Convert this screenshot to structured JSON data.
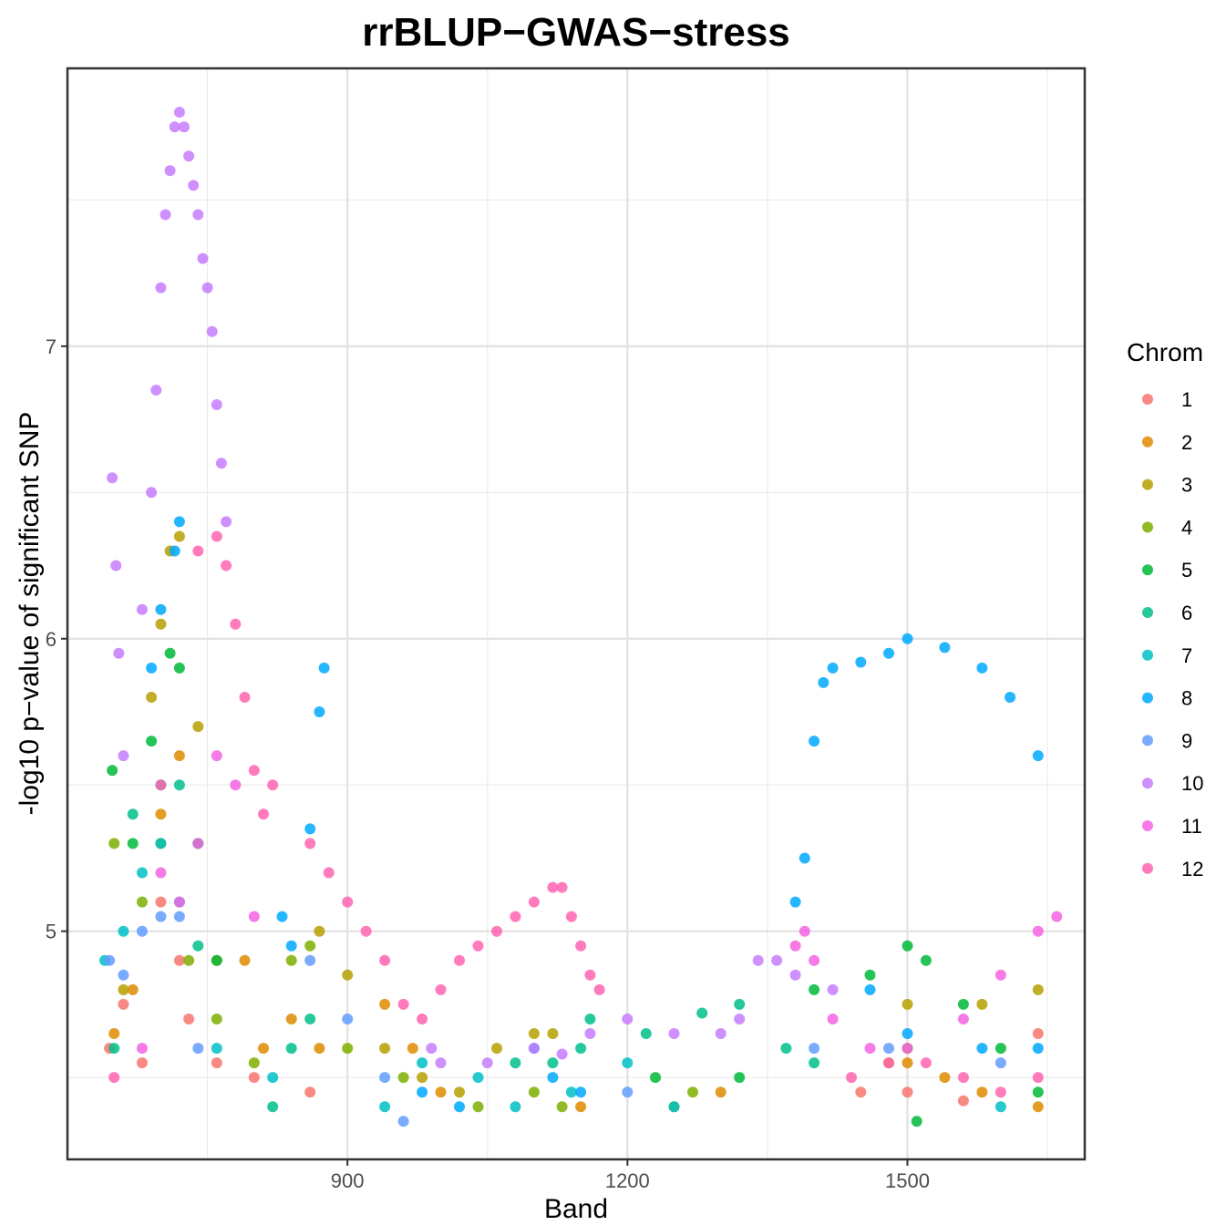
{
  "chart_data": {
    "type": "scatter",
    "title": "rrBLUP−GWAS−stress",
    "xlabel": "Band",
    "ylabel": "-log10 p−value of significant SNP",
    "xlim": [
      600,
      1690
    ],
    "ylim": [
      4.22,
      7.95
    ],
    "x_ticks": [
      900,
      1200,
      1500
    ],
    "x_tick_labels": [
      "900",
      "1200",
      "1500"
    ],
    "y_ticks": [
      5,
      6,
      7
    ],
    "y_tick_labels": [
      "5",
      "6",
      "7"
    ],
    "grid": true,
    "legend": {
      "title": "Chrom",
      "position": "right"
    },
    "series": [
      {
        "name": "1",
        "color": "#F8766D",
        "points": [
          [
            645,
            4.6
          ],
          [
            660,
            4.75
          ],
          [
            680,
            4.55
          ],
          [
            700,
            5.1
          ],
          [
            720,
            4.9
          ],
          [
            730,
            4.7
          ],
          [
            760,
            4.55
          ],
          [
            800,
            4.5
          ],
          [
            860,
            4.45
          ],
          [
            1450,
            4.45
          ],
          [
            1500,
            4.45
          ],
          [
            1560,
            4.42
          ],
          [
            1640,
            4.65
          ]
        ]
      },
      {
        "name": "2",
        "color": "#DE8C00",
        "points": [
          [
            650,
            4.65
          ],
          [
            670,
            4.8
          ],
          [
            700,
            5.4
          ],
          [
            720,
            5.6
          ],
          [
            760,
            4.9
          ],
          [
            790,
            4.9
          ],
          [
            810,
            4.6
          ],
          [
            840,
            4.7
          ],
          [
            870,
            4.6
          ],
          [
            940,
            4.75
          ],
          [
            970,
            4.6
          ],
          [
            1000,
            4.45
          ],
          [
            1150,
            4.4
          ],
          [
            1300,
            4.45
          ],
          [
            1480,
            4.55
          ],
          [
            1500,
            4.55
          ],
          [
            1540,
            4.5
          ],
          [
            1580,
            4.45
          ],
          [
            1640,
            4.4
          ]
        ]
      },
      {
        "name": "3",
        "color": "#B79F00",
        "points": [
          [
            660,
            4.8
          ],
          [
            690,
            5.8
          ],
          [
            700,
            6.05
          ],
          [
            710,
            6.3
          ],
          [
            720,
            6.35
          ],
          [
            740,
            5.7
          ],
          [
            870,
            5.0
          ],
          [
            900,
            4.85
          ],
          [
            940,
            4.6
          ],
          [
            980,
            4.5
          ],
          [
            1020,
            4.45
          ],
          [
            1060,
            4.6
          ],
          [
            1100,
            4.65
          ],
          [
            1120,
            4.65
          ],
          [
            1500,
            4.75
          ],
          [
            1580,
            4.75
          ],
          [
            1640,
            4.8
          ]
        ]
      },
      {
        "name": "4",
        "color": "#7CAE00",
        "points": [
          [
            650,
            5.3
          ],
          [
            680,
            5.1
          ],
          [
            700,
            5.3
          ],
          [
            730,
            4.9
          ],
          [
            760,
            4.7
          ],
          [
            800,
            4.55
          ],
          [
            840,
            4.9
          ],
          [
            860,
            4.95
          ],
          [
            900,
            4.6
          ],
          [
            960,
            4.5
          ],
          [
            1040,
            4.4
          ],
          [
            1100,
            4.45
          ],
          [
            1130,
            4.4
          ],
          [
            1250,
            4.4
          ],
          [
            1270,
            4.45
          ],
          [
            1500,
            4.6
          ]
        ]
      },
      {
        "name": "5",
        "color": "#00BA38",
        "points": [
          [
            648,
            5.55
          ],
          [
            670,
            5.3
          ],
          [
            690,
            5.65
          ],
          [
            710,
            5.95
          ],
          [
            720,
            5.9
          ],
          [
            740,
            5.3
          ],
          [
            760,
            4.9
          ],
          [
            1230,
            4.5
          ],
          [
            1320,
            4.5
          ],
          [
            1400,
            4.8
          ],
          [
            1460,
            4.85
          ],
          [
            1500,
            4.95
          ],
          [
            1520,
            4.9
          ],
          [
            1560,
            4.75
          ],
          [
            1600,
            4.6
          ],
          [
            1640,
            4.45
          ],
          [
            1510,
            4.35
          ]
        ]
      },
      {
        "name": "6",
        "color": "#00C08B",
        "points": [
          [
            650,
            4.6
          ],
          [
            670,
            5.4
          ],
          [
            700,
            5.5
          ],
          [
            720,
            5.5
          ],
          [
            740,
            4.95
          ],
          [
            820,
            4.4
          ],
          [
            840,
            4.6
          ],
          [
            860,
            4.7
          ],
          [
            1080,
            4.55
          ],
          [
            1120,
            4.55
          ],
          [
            1150,
            4.6
          ],
          [
            1160,
            4.7
          ],
          [
            1220,
            4.65
          ],
          [
            1280,
            4.72
          ],
          [
            1320,
            4.75
          ],
          [
            1370,
            4.6
          ],
          [
            1400,
            4.55
          ]
        ]
      },
      {
        "name": "7",
        "color": "#00BFC4",
        "points": [
          [
            640,
            4.9
          ],
          [
            660,
            5.0
          ],
          [
            680,
            5.2
          ],
          [
            700,
            5.3
          ],
          [
            720,
            5.1
          ],
          [
            760,
            4.6
          ],
          [
            820,
            4.5
          ],
          [
            940,
            4.4
          ],
          [
            980,
            4.55
          ],
          [
            1040,
            4.5
          ],
          [
            1080,
            4.4
          ],
          [
            1140,
            4.45
          ],
          [
            1200,
            4.55
          ],
          [
            1250,
            4.4
          ],
          [
            1600,
            4.4
          ]
        ]
      },
      {
        "name": "8",
        "color": "#00A9FF",
        "points": [
          [
            690,
            5.9
          ],
          [
            700,
            6.1
          ],
          [
            715,
            6.3
          ],
          [
            720,
            6.4
          ],
          [
            830,
            5.05
          ],
          [
            840,
            4.95
          ],
          [
            860,
            5.35
          ],
          [
            870,
            5.75
          ],
          [
            875,
            5.9
          ],
          [
            980,
            4.45
          ],
          [
            1020,
            4.4
          ],
          [
            1100,
            4.6
          ],
          [
            1120,
            4.5
          ],
          [
            1150,
            4.45
          ],
          [
            1380,
            5.1
          ],
          [
            1390,
            5.25
          ],
          [
            1400,
            5.65
          ],
          [
            1410,
            5.85
          ],
          [
            1420,
            5.9
          ],
          [
            1450,
            5.92
          ],
          [
            1480,
            5.95
          ],
          [
            1500,
            6.0
          ],
          [
            1540,
            5.97
          ],
          [
            1580,
            5.9
          ],
          [
            1610,
            5.8
          ],
          [
            1640,
            5.6
          ],
          [
            1460,
            4.8
          ],
          [
            1500,
            4.65
          ],
          [
            1580,
            4.6
          ],
          [
            1640,
            4.6
          ]
        ]
      },
      {
        "name": "9",
        "color": "#619CFF",
        "points": [
          [
            645,
            4.9
          ],
          [
            660,
            4.85
          ],
          [
            680,
            5.0
          ],
          [
            700,
            5.05
          ],
          [
            720,
            5.05
          ],
          [
            740,
            4.6
          ],
          [
            860,
            4.9
          ],
          [
            900,
            4.7
          ],
          [
            940,
            4.5
          ],
          [
            960,
            4.35
          ],
          [
            1200,
            4.45
          ],
          [
            1400,
            4.6
          ],
          [
            1480,
            4.6
          ],
          [
            1600,
            4.55
          ]
        ]
      },
      {
        "name": "10",
        "color": "#C77CFF",
        "points": [
          [
            648,
            6.55
          ],
          [
            652,
            6.25
          ],
          [
            655,
            5.95
          ],
          [
            660,
            5.6
          ],
          [
            680,
            6.1
          ],
          [
            690,
            6.5
          ],
          [
            695,
            6.85
          ],
          [
            700,
            7.2
          ],
          [
            705,
            7.45
          ],
          [
            710,
            7.6
          ],
          [
            715,
            7.75
          ],
          [
            720,
            7.8
          ],
          [
            725,
            7.75
          ],
          [
            730,
            7.65
          ],
          [
            735,
            7.55
          ],
          [
            740,
            7.45
          ],
          [
            745,
            7.3
          ],
          [
            750,
            7.2
          ],
          [
            755,
            7.05
          ],
          [
            760,
            6.8
          ],
          [
            765,
            6.6
          ],
          [
            770,
            6.4
          ],
          [
            990,
            4.6
          ],
          [
            1000,
            4.55
          ],
          [
            1050,
            4.55
          ],
          [
            1100,
            4.6
          ],
          [
            1130,
            4.58
          ],
          [
            1160,
            4.65
          ],
          [
            1200,
            4.7
          ],
          [
            1250,
            4.65
          ],
          [
            1300,
            4.65
          ],
          [
            1320,
            4.7
          ],
          [
            1340,
            4.9
          ],
          [
            1360,
            4.9
          ],
          [
            1380,
            4.85
          ],
          [
            1420,
            4.8
          ]
        ]
      },
      {
        "name": "11",
        "color": "#F564E3",
        "points": [
          [
            680,
            4.6
          ],
          [
            700,
            5.2
          ],
          [
            720,
            5.1
          ],
          [
            740,
            5.3
          ],
          [
            760,
            5.6
          ],
          [
            780,
            5.5
          ],
          [
            800,
            5.05
          ],
          [
            1380,
            4.95
          ],
          [
            1390,
            5.0
          ],
          [
            1400,
            4.9
          ],
          [
            1420,
            4.7
          ],
          [
            1460,
            4.6
          ],
          [
            1500,
            4.6
          ],
          [
            1560,
            4.7
          ],
          [
            1600,
            4.85
          ],
          [
            1640,
            5.0
          ],
          [
            1660,
            5.05
          ]
        ]
      },
      {
        "name": "12",
        "color": "#FF64B0",
        "points": [
          [
            650,
            4.5
          ],
          [
            700,
            5.5
          ],
          [
            740,
            6.3
          ],
          [
            760,
            6.35
          ],
          [
            770,
            6.25
          ],
          [
            780,
            6.05
          ],
          [
            790,
            5.8
          ],
          [
            800,
            5.55
          ],
          [
            810,
            5.4
          ],
          [
            820,
            5.5
          ],
          [
            860,
            5.3
          ],
          [
            880,
            5.2
          ],
          [
            900,
            5.1
          ],
          [
            920,
            5.0
          ],
          [
            940,
            4.9
          ],
          [
            960,
            4.75
          ],
          [
            980,
            4.7
          ],
          [
            1000,
            4.8
          ],
          [
            1020,
            4.9
          ],
          [
            1040,
            4.95
          ],
          [
            1060,
            5.0
          ],
          [
            1080,
            5.05
          ],
          [
            1100,
            5.1
          ],
          [
            1120,
            5.15
          ],
          [
            1130,
            5.15
          ],
          [
            1140,
            5.05
          ],
          [
            1150,
            4.95
          ],
          [
            1160,
            4.85
          ],
          [
            1170,
            4.8
          ],
          [
            1440,
            4.5
          ],
          [
            1480,
            4.55
          ],
          [
            1520,
            4.55
          ],
          [
            1560,
            4.5
          ],
          [
            1600,
            4.45
          ],
          [
            1640,
            4.5
          ]
        ]
      }
    ]
  }
}
